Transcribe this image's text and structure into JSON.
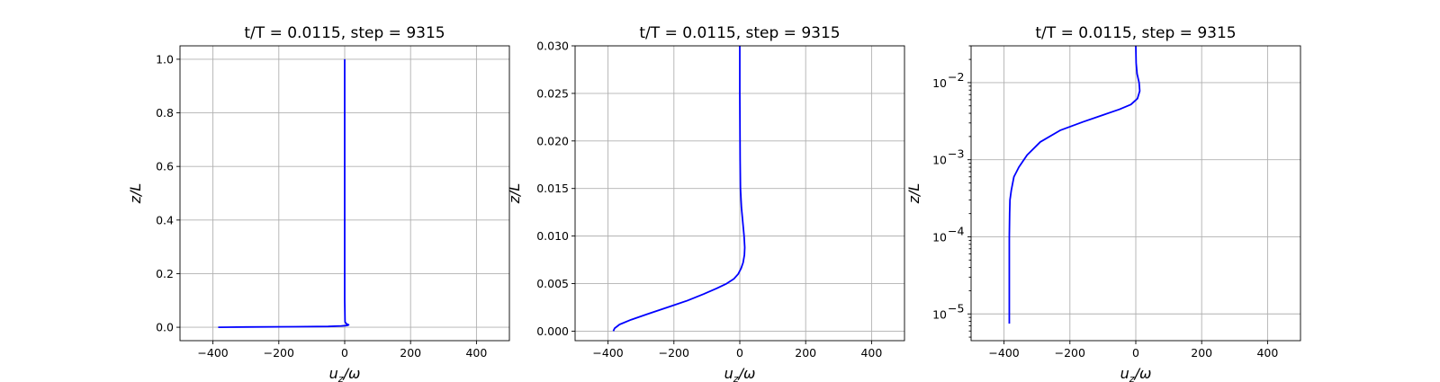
{
  "chart_data": [
    {
      "type": "line",
      "title": "t/T = 0.0115, step = 9315",
      "xlabel_main": "u",
      "xlabel_sub": "z",
      "xlabel_tail": "/ω",
      "ylabel": "z/L",
      "xscale": "linear",
      "yscale": "linear",
      "xlim": [
        -500,
        500
      ],
      "ylim": [
        -0.05,
        1.05
      ],
      "xticks": [
        -400,
        -200,
        0,
        200,
        400
      ],
      "xtick_labels": [
        "−400",
        "−200",
        "0",
        "200",
        "400"
      ],
      "yticks": [
        0.0,
        0.2,
        0.4,
        0.6,
        0.8,
        1.0
      ],
      "ytick_labels": [
        "0.0",
        "0.2",
        "0.4",
        "0.6",
        "0.8",
        "1.0"
      ],
      "grid": true,
      "color": "#0000ff",
      "series": [
        {
          "x": [
            -384,
            -300,
            -150,
            -50,
            -10,
            2,
            8,
            12,
            5,
            1,
            0,
            0,
            0
          ],
          "y": [
            0.0,
            0.001,
            0.002,
            0.003,
            0.005,
            0.006,
            0.007,
            0.009,
            0.013,
            0.02,
            0.1,
            0.5,
            1.0
          ]
        }
      ]
    },
    {
      "type": "line",
      "title": "t/T = 0.0115, step = 9315",
      "xlabel_main": "u",
      "xlabel_sub": "z",
      "xlabel_tail": "/ω",
      "ylabel": "z/L",
      "xscale": "linear",
      "yscale": "linear",
      "xlim": [
        -500,
        500
      ],
      "ylim": [
        -0.001,
        0.03
      ],
      "xticks": [
        -400,
        -200,
        0,
        200,
        400
      ],
      "xtick_labels": [
        "−400",
        "−200",
        "0",
        "200",
        "400"
      ],
      "yticks": [
        0.0,
        0.005,
        0.01,
        0.015,
        0.02,
        0.025,
        0.03
      ],
      "ytick_labels": [
        "0.000",
        "0.005",
        "0.010",
        "0.015",
        "0.020",
        "0.025",
        "0.030"
      ],
      "grid": true,
      "color": "#0000ff",
      "series": [
        {
          "x": [
            -384,
            -380,
            -365,
            -330,
            -280,
            -220,
            -160,
            -110,
            -70,
            -40,
            -18,
            -5,
            4,
            10,
            14,
            15,
            13,
            9,
            5,
            2,
            1,
            0,
            0
          ],
          "y": [
            0.0,
            0.0003,
            0.0007,
            0.0012,
            0.0018,
            0.0025,
            0.0032,
            0.0039,
            0.0045,
            0.005,
            0.0055,
            0.006,
            0.0066,
            0.0072,
            0.008,
            0.0088,
            0.01,
            0.0115,
            0.013,
            0.015,
            0.018,
            0.025,
            0.03
          ]
        }
      ]
    },
    {
      "type": "line",
      "title": "t/T = 0.0115, step = 9315",
      "xlabel_main": "u",
      "xlabel_sub": "z",
      "xlabel_tail": "/ω",
      "ylabel": "z/L",
      "xscale": "linear",
      "yscale": "log",
      "xlim": [
        -500,
        500
      ],
      "ylim": [
        4.5e-06,
        0.03
      ],
      "xticks": [
        -400,
        -200,
        0,
        200,
        400
      ],
      "xtick_labels": [
        "−400",
        "−200",
        "0",
        "200",
        "400"
      ],
      "yticks": [
        1e-05,
        0.0001,
        0.001,
        0.01
      ],
      "ytick_labels": [
        "10",
        "10",
        "10",
        "10"
      ],
      "ytick_exponents": [
        "−5",
        "−4",
        "−3",
        "−2"
      ],
      "grid": true,
      "color": "#0000ff",
      "series": [
        {
          "x": [
            -384,
            -384,
            -384,
            -383,
            -382,
            -378,
            -370,
            -355,
            -330,
            -290,
            -230,
            -160,
            -100,
            -50,
            -15,
            5,
            12,
            10,
            4,
            1,
            0
          ],
          "y": [
            7.5e-06,
            2e-05,
            0.0001,
            0.0002,
            0.0003,
            0.0004,
            0.0006,
            0.0008,
            0.00115,
            0.0017,
            0.0024,
            0.0031,
            0.0038,
            0.0045,
            0.0052,
            0.0062,
            0.0078,
            0.01,
            0.013,
            0.018,
            0.03
          ]
        }
      ]
    }
  ]
}
